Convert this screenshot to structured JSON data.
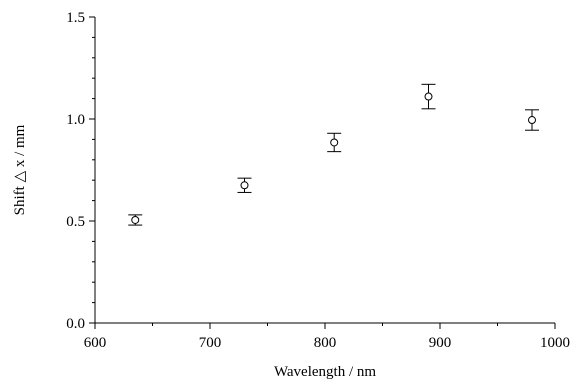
{
  "chart_data": {
    "type": "scatter",
    "title": "",
    "xlabel": "Wavelength / nm",
    "ylabel": "Shift △ x / mm",
    "xlim": [
      600,
      1000
    ],
    "ylim": [
      0.0,
      1.5
    ],
    "x_ticks": [
      600,
      700,
      800,
      900,
      1000
    ],
    "y_ticks": [
      0.0,
      0.5,
      1.0,
      1.5
    ],
    "x_tick_labels": [
      "600",
      "700",
      "800",
      "900",
      "1000"
    ],
    "y_tick_labels": [
      "0.0",
      "0.5",
      "1.0",
      "1.5"
    ],
    "grid": false,
    "series": [
      {
        "marker": "open-circle",
        "points": [
          {
            "x": 635,
            "y": 0.505,
            "err": 0.025
          },
          {
            "x": 730,
            "y": 0.675,
            "err": 0.035
          },
          {
            "x": 808,
            "y": 0.885,
            "err": 0.045
          },
          {
            "x": 890,
            "y": 1.11,
            "err": 0.06
          },
          {
            "x": 980,
            "y": 0.995,
            "err": 0.05
          }
        ]
      }
    ]
  }
}
